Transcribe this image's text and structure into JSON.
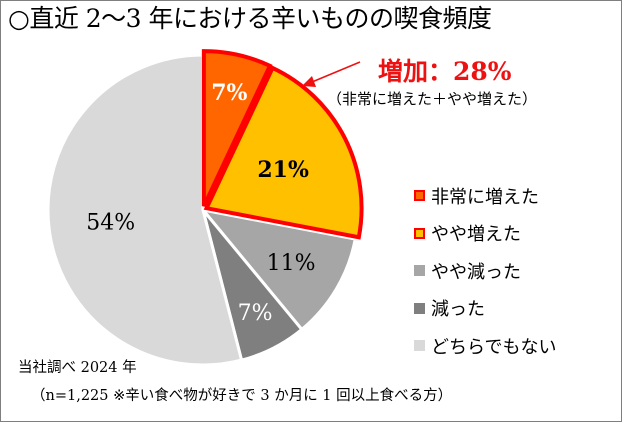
{
  "title": "○直近 2～3 年における辛いものの喫食頻度",
  "callout": {
    "main": "増加：28%",
    "sub": "（非常に増えた＋やや増えた）",
    "color": "#ee1111"
  },
  "chart_data": {
    "type": "pie",
    "title": "直近 2～3 年における辛いものの喫食頻度",
    "start": "top, clockwise",
    "exploded": [
      "非常に増えた",
      "やや増えた"
    ],
    "slices": [
      {
        "label": "非常に増えた",
        "value": 7,
        "display": "7%",
        "color": "#ff6600",
        "outline": "#ff0000"
      },
      {
        "label": "やや増えた",
        "value": 21,
        "display": "21%",
        "color": "#ffc000",
        "outline": "#ff0000"
      },
      {
        "label": "やや減った",
        "value": 11,
        "display": "11%",
        "color": "#a6a6a6",
        "outline": "#ffffff"
      },
      {
        "label": "減った",
        "value": 7,
        "display": "7%",
        "color": "#7f7f7f",
        "outline": "#ffffff"
      },
      {
        "label": "どちらでもない",
        "value": 54,
        "display": "54%",
        "color": "#d9d9d9",
        "outline": "#ffffff"
      }
    ],
    "legend_placement": "right"
  },
  "footer": {
    "line1": "当社調べ 2024 年",
    "line2": "（n=1,225 ※辛い食べ物が好きで 3 か月に 1 回以上食べる方）"
  }
}
